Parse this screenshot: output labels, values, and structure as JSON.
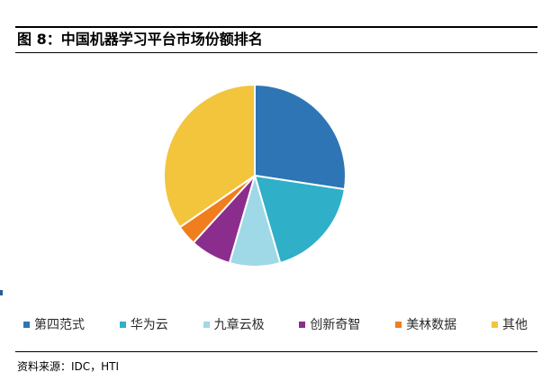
{
  "figure": {
    "title": "图 8：中国机器学习平台市场份额排名",
    "source": "资料来源：IDC，HTI"
  },
  "chart_data": {
    "type": "pie",
    "title": "",
    "categories": [
      "第四范式",
      "华为云",
      "九章云极",
      "创新奇智",
      "美林数据",
      "其他"
    ],
    "values": [
      27.4,
      18.1,
      9.0,
      7.3,
      3.6,
      34.6
    ],
    "colors": [
      "#2E75B6",
      "#2FAFC8",
      "#9FD8E6",
      "#8B2D8D",
      "#F07D1E",
      "#F2C53D"
    ],
    "legend_position": "bottom",
    "start_angle": "top",
    "direction": "clockwise"
  }
}
